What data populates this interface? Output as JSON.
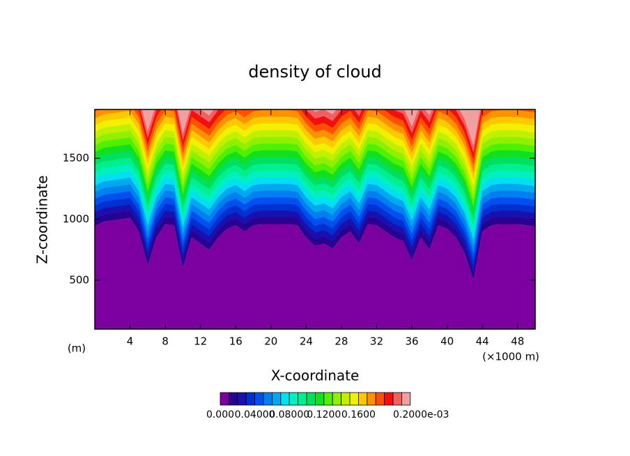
{
  "chart_data": {
    "type": "contour",
    "title": "density of cloud",
    "x_label": "X-coordinate",
    "y_label": "Z-coordinate",
    "y_unit": "(m)",
    "x_unit": "(×1000 m)",
    "x": [
      0,
      1,
      2,
      3,
      4,
      5,
      6,
      7,
      8,
      9,
      10,
      11,
      12,
      13,
      14,
      15,
      16,
      17,
      18,
      19,
      20,
      21,
      22,
      23,
      24,
      25,
      26,
      27,
      28,
      29,
      30,
      31,
      32,
      33,
      34,
      35,
      36,
      37,
      38,
      39,
      40,
      41,
      42,
      43,
      44,
      45,
      46,
      47,
      48,
      49,
      50
    ],
    "cloud_base": [
      945,
      980,
      990,
      1000,
      1010,
      900,
      620,
      850,
      960,
      950,
      600,
      850,
      800,
      750,
      850,
      920,
      950,
      900,
      950,
      960,
      960,
      960,
      960,
      950,
      850,
      780,
      800,
      760,
      850,
      900,
      800,
      960,
      950,
      900,
      850,
      820,
      660,
      850,
      750,
      950,
      920,
      850,
      720,
      500,
      900,
      950,
      960,
      960,
      960,
      950,
      940
    ],
    "xlim": [
      0,
      50
    ],
    "ylim": [
      100,
      1900
    ],
    "xticks": [
      4,
      8,
      12,
      16,
      20,
      24,
      28,
      32,
      36,
      40,
      44,
      48
    ],
    "yticks": [
      500,
      1000,
      1500
    ],
    "level_colors": [
      "#7b009f",
      "#2a0090",
      "#1a10b0",
      "#0030d0",
      "#0050f0",
      "#0080f0",
      "#00a8f0",
      "#00e0f0",
      "#00f0c0",
      "#00f090",
      "#00e060",
      "#10e020",
      "#50f000",
      "#90f000",
      "#c0f000",
      "#f0f000",
      "#ffc800",
      "#ff9000",
      "#ff5000",
      "#f01010",
      "#f06060",
      "#f0a0a0"
    ],
    "colorbar_labels": [
      "0.000",
      "0.04000",
      "0.08000",
      "0.1200",
      "0.1600",
      "0.2000e-03"
    ]
  }
}
